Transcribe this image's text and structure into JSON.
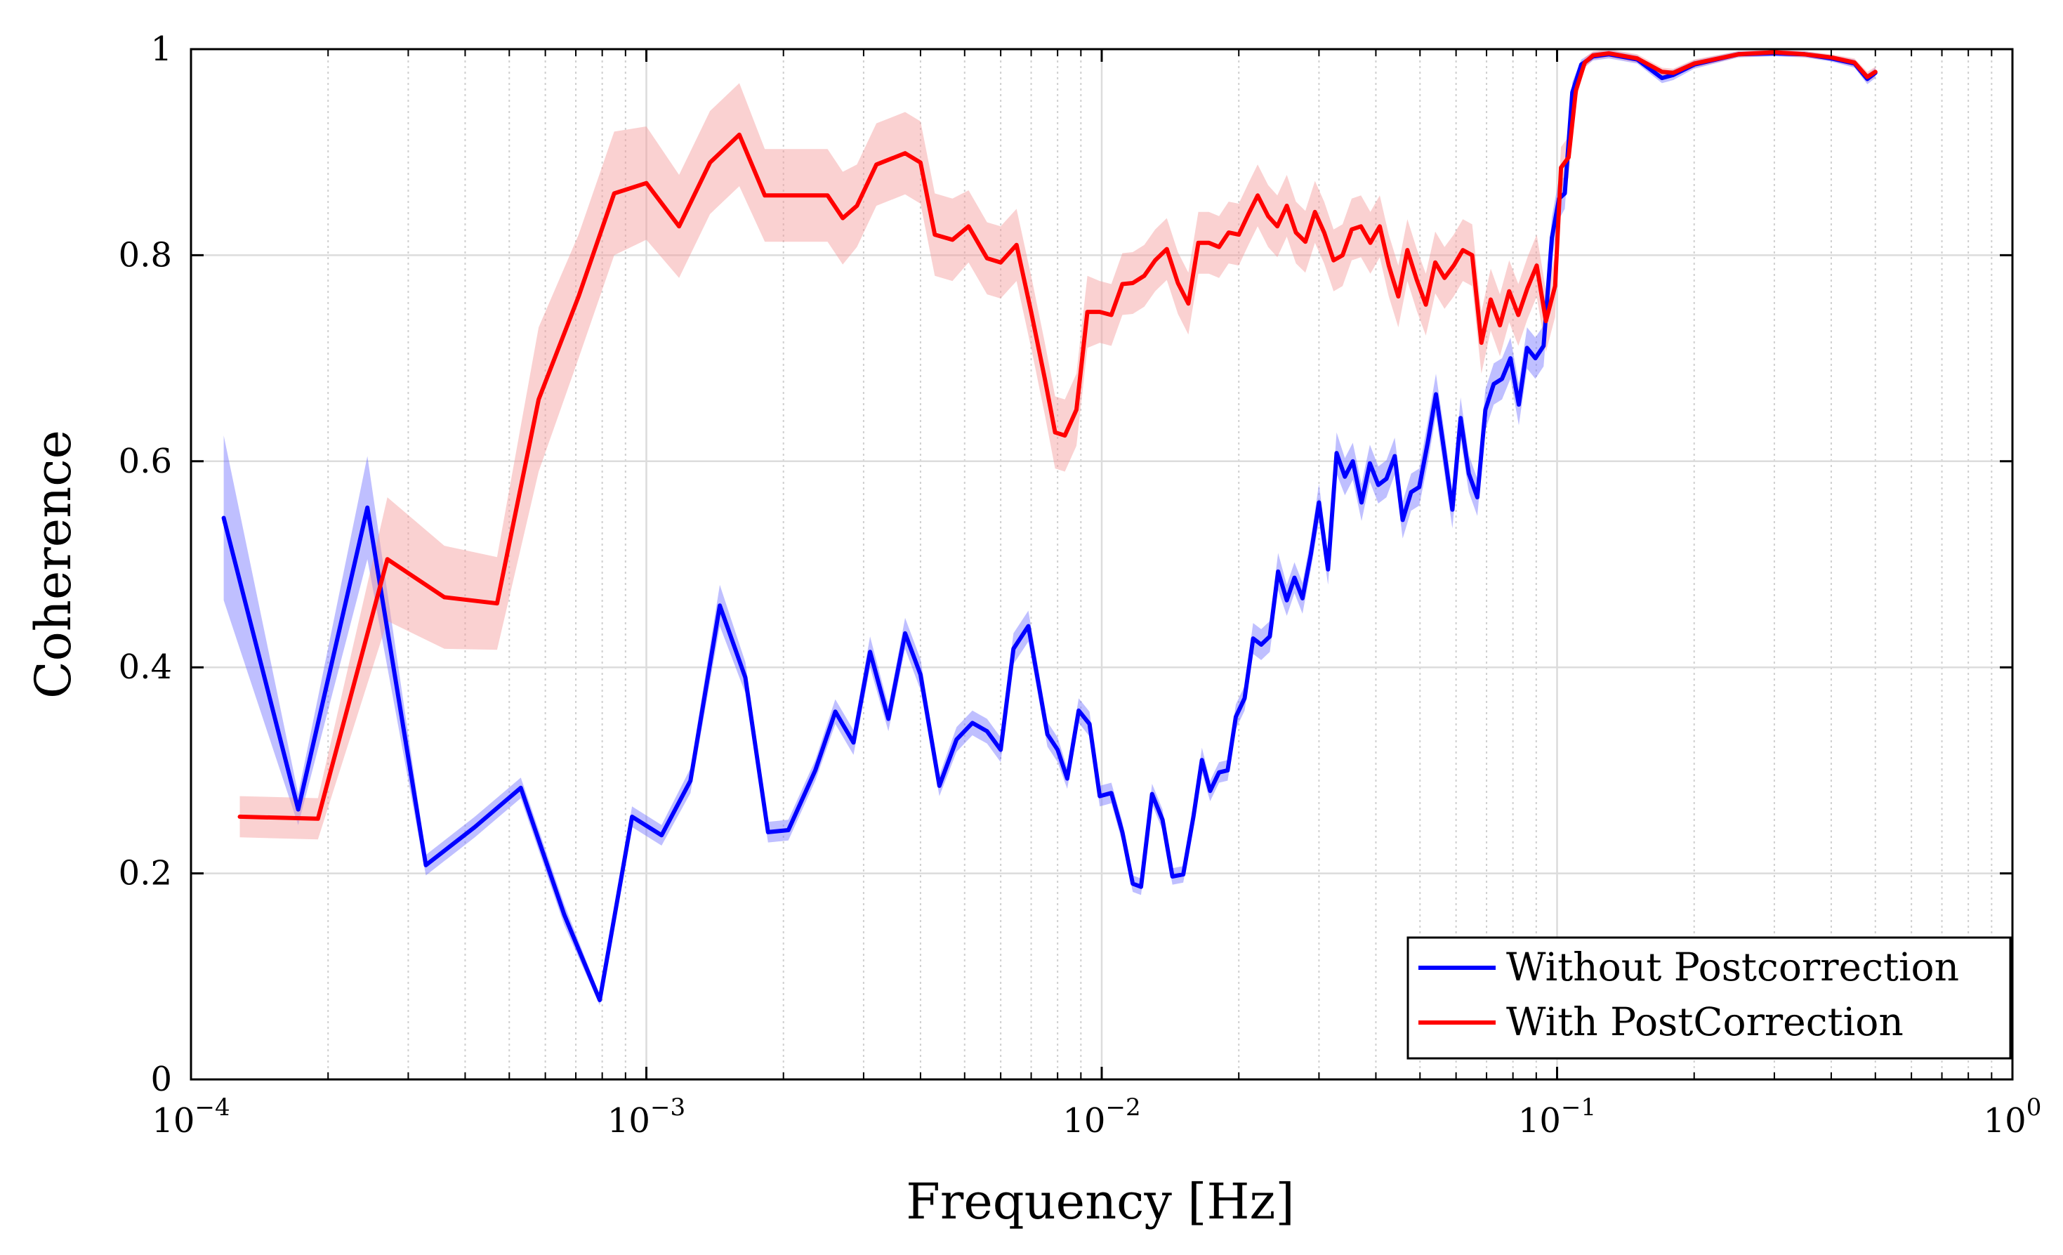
{
  "chart_data": {
    "type": "line",
    "xscale": "log",
    "xlabel": "Frequency [Hz]",
    "ylabel": "Coherence",
    "xlim": [
      0.0001,
      1
    ],
    "ylim": [
      0,
      1
    ],
    "grid": true,
    "legend_position": "bottom-right",
    "x_ticks": [
      {
        "value": 0.0001,
        "base": "10",
        "exp": "−4"
      },
      {
        "value": 0.001,
        "base": "10",
        "exp": "−3"
      },
      {
        "value": 0.01,
        "base": "10",
        "exp": "−2"
      },
      {
        "value": 0.1,
        "base": "10",
        "exp": "−1"
      },
      {
        "value": 1,
        "base": "10",
        "exp": "0"
      }
    ],
    "y_ticks": [
      {
        "value": 0,
        "label": "0"
      },
      {
        "value": 0.2,
        "label": "0.2"
      },
      {
        "value": 0.4,
        "label": "0.4"
      },
      {
        "value": 0.6,
        "label": "0.6"
      },
      {
        "value": 0.8,
        "label": "0.8"
      },
      {
        "value": 1,
        "label": "1"
      }
    ],
    "series": [
      {
        "name": "Without Postcorrection",
        "color": "#0000ff",
        "band_color": "#7070ff",
        "points": [
          [
            0.000118,
            0.545,
            0.08
          ],
          [
            0.000172,
            0.262,
            0.015
          ],
          [
            0.000244,
            0.555,
            0.05
          ],
          [
            0.000328,
            0.208,
            0.01
          ],
          [
            0.00042,
            0.245,
            0.01
          ],
          [
            0.00053,
            0.283,
            0.01
          ],
          [
            0.00066,
            0.16,
            0.01
          ],
          [
            0.00079,
            0.077,
            0.005
          ],
          [
            0.00093,
            0.255,
            0.01
          ],
          [
            0.00108,
            0.237,
            0.01
          ],
          [
            0.00125,
            0.29,
            0.012
          ],
          [
            0.00145,
            0.46,
            0.02
          ],
          [
            0.00165,
            0.39,
            0.015
          ],
          [
            0.00185,
            0.24,
            0.01
          ],
          [
            0.00205,
            0.242,
            0.01
          ],
          [
            0.00235,
            0.3,
            0.01
          ],
          [
            0.0026,
            0.357,
            0.012
          ],
          [
            0.00285,
            0.327,
            0.012
          ],
          [
            0.0031,
            0.415,
            0.015
          ],
          [
            0.0034,
            0.35,
            0.012
          ],
          [
            0.0037,
            0.433,
            0.015
          ],
          [
            0.004,
            0.393,
            0.015
          ],
          [
            0.0044,
            0.285,
            0.01
          ],
          [
            0.0048,
            0.33,
            0.012
          ],
          [
            0.0052,
            0.346,
            0.012
          ],
          [
            0.0056,
            0.338,
            0.012
          ],
          [
            0.006,
            0.32,
            0.012
          ],
          [
            0.0064,
            0.418,
            0.015
          ],
          [
            0.0069,
            0.44,
            0.015
          ],
          [
            0.0076,
            0.335,
            0.012
          ],
          [
            0.008,
            0.32,
            0.012
          ],
          [
            0.0084,
            0.292,
            0.01
          ],
          [
            0.0089,
            0.358,
            0.012
          ],
          [
            0.0094,
            0.345,
            0.012
          ],
          [
            0.0099,
            0.275,
            0.01
          ],
          [
            0.0105,
            0.278,
            0.01
          ],
          [
            0.0111,
            0.24,
            0.01
          ],
          [
            0.0117,
            0.19,
            0.008
          ],
          [
            0.0122,
            0.187,
            0.008
          ],
          [
            0.0129,
            0.277,
            0.01
          ],
          [
            0.0136,
            0.252,
            0.01
          ],
          [
            0.0143,
            0.197,
            0.008
          ],
          [
            0.0151,
            0.199,
            0.008
          ],
          [
            0.0159,
            0.255,
            0.01
          ],
          [
            0.0166,
            0.31,
            0.012
          ],
          [
            0.0173,
            0.28,
            0.01
          ],
          [
            0.0181,
            0.298,
            0.01
          ],
          [
            0.0189,
            0.3,
            0.01
          ],
          [
            0.0197,
            0.352,
            0.012
          ],
          [
            0.0206,
            0.37,
            0.012
          ],
          [
            0.0215,
            0.428,
            0.015
          ],
          [
            0.0224,
            0.422,
            0.015
          ],
          [
            0.0234,
            0.43,
            0.015
          ],
          [
            0.0244,
            0.493,
            0.018
          ],
          [
            0.0255,
            0.465,
            0.015
          ],
          [
            0.0265,
            0.487,
            0.015
          ],
          [
            0.0276,
            0.467,
            0.015
          ],
          [
            0.0288,
            0.51,
            0.015
          ],
          [
            0.03,
            0.56,
            0.018
          ],
          [
            0.0314,
            0.495,
            0.015
          ],
          [
            0.0328,
            0.608,
            0.02
          ],
          [
            0.0342,
            0.585,
            0.018
          ],
          [
            0.0356,
            0.6,
            0.018
          ],
          [
            0.0372,
            0.56,
            0.018
          ],
          [
            0.0388,
            0.598,
            0.018
          ],
          [
            0.0405,
            0.577,
            0.018
          ],
          [
            0.0422,
            0.583,
            0.018
          ],
          [
            0.044,
            0.605,
            0.018
          ],
          [
            0.0458,
            0.543,
            0.018
          ],
          [
            0.0478,
            0.57,
            0.018
          ],
          [
            0.0498,
            0.575,
            0.018
          ],
          [
            0.052,
            0.618,
            0.02
          ],
          [
            0.0542,
            0.665,
            0.02
          ],
          [
            0.0565,
            0.61,
            0.02
          ],
          [
            0.0589,
            0.553,
            0.018
          ],
          [
            0.0614,
            0.642,
            0.02
          ],
          [
            0.064,
            0.588,
            0.018
          ],
          [
            0.0668,
            0.565,
            0.018
          ],
          [
            0.0696,
            0.65,
            0.02
          ],
          [
            0.0726,
            0.675,
            0.02
          ],
          [
            0.0757,
            0.68,
            0.02
          ],
          [
            0.079,
            0.7,
            0.02
          ],
          [
            0.0824,
            0.655,
            0.02
          ],
          [
            0.0859,
            0.71,
            0.02
          ],
          [
            0.0896,
            0.7,
            0.02
          ],
          [
            0.0934,
            0.712,
            0.02
          ],
          [
            0.0974,
            0.817,
            0.02
          ],
          [
            0.101,
            0.855,
            0.02
          ],
          [
            0.104,
            0.86,
            0.015
          ],
          [
            0.108,
            0.958,
            0.01
          ],
          [
            0.113,
            0.985,
            0.005
          ],
          [
            0.12,
            0.993,
            0.004
          ],
          [
            0.13,
            0.995,
            0.004
          ],
          [
            0.15,
            0.99,
            0.004
          ],
          [
            0.17,
            0.972,
            0.005
          ],
          [
            0.18,
            0.975,
            0.005
          ],
          [
            0.2,
            0.985,
            0.004
          ],
          [
            0.25,
            0.995,
            0.003
          ],
          [
            0.3,
            0.996,
            0.003
          ],
          [
            0.35,
            0.995,
            0.003
          ],
          [
            0.4,
            0.991,
            0.003
          ],
          [
            0.45,
            0.986,
            0.004
          ],
          [
            0.48,
            0.971,
            0.005
          ],
          [
            0.5,
            0.977,
            0.005
          ]
        ]
      },
      {
        "name": "With PostCorrection",
        "color": "#ff0000",
        "band_color": "#f59a9a",
        "points": [
          [
            0.000128,
            0.255,
            0.02
          ],
          [
            0.00019,
            0.253,
            0.02
          ],
          [
            0.00027,
            0.505,
            0.06
          ],
          [
            0.00036,
            0.468,
            0.05
          ],
          [
            0.00047,
            0.462,
            0.045
          ],
          [
            0.00058,
            0.66,
            0.07
          ],
          [
            0.00071,
            0.76,
            0.06
          ],
          [
            0.00085,
            0.86,
            0.06
          ],
          [
            0.001,
            0.87,
            0.055
          ],
          [
            0.00118,
            0.828,
            0.05
          ],
          [
            0.00138,
            0.89,
            0.05
          ],
          [
            0.0016,
            0.917,
            0.05
          ],
          [
            0.00182,
            0.858,
            0.045
          ],
          [
            0.0021,
            0.858,
            0.045
          ],
          [
            0.0025,
            0.858,
            0.045
          ],
          [
            0.0027,
            0.836,
            0.045
          ],
          [
            0.0029,
            0.848,
            0.04
          ],
          [
            0.0032,
            0.888,
            0.04
          ],
          [
            0.0037,
            0.899,
            0.04
          ],
          [
            0.004,
            0.89,
            0.04
          ],
          [
            0.0043,
            0.82,
            0.04
          ],
          [
            0.0047,
            0.815,
            0.04
          ],
          [
            0.0051,
            0.828,
            0.035
          ],
          [
            0.0056,
            0.797,
            0.035
          ],
          [
            0.006,
            0.793,
            0.035
          ],
          [
            0.0065,
            0.81,
            0.035
          ],
          [
            0.007,
            0.745,
            0.035
          ],
          [
            0.0075,
            0.68,
            0.035
          ],
          [
            0.0079,
            0.628,
            0.035
          ],
          [
            0.0083,
            0.625,
            0.035
          ],
          [
            0.0088,
            0.65,
            0.035
          ],
          [
            0.0093,
            0.745,
            0.035
          ],
          [
            0.0099,
            0.745,
            0.03
          ],
          [
            0.0105,
            0.742,
            0.03
          ],
          [
            0.0111,
            0.772,
            0.03
          ],
          [
            0.0117,
            0.773,
            0.03
          ],
          [
            0.0124,
            0.78,
            0.03
          ],
          [
            0.0131,
            0.795,
            0.03
          ],
          [
            0.0139,
            0.806,
            0.03
          ],
          [
            0.0147,
            0.773,
            0.03
          ],
          [
            0.0155,
            0.753,
            0.03
          ],
          [
            0.0163,
            0.812,
            0.03
          ],
          [
            0.0172,
            0.812,
            0.03
          ],
          [
            0.0181,
            0.808,
            0.03
          ],
          [
            0.019,
            0.822,
            0.03
          ],
          [
            0.02,
            0.82,
            0.03
          ],
          [
            0.021,
            0.84,
            0.03
          ],
          [
            0.022,
            0.858,
            0.03
          ],
          [
            0.0232,
            0.838,
            0.03
          ],
          [
            0.0243,
            0.828,
            0.03
          ],
          [
            0.0255,
            0.848,
            0.03
          ],
          [
            0.0267,
            0.822,
            0.03
          ],
          [
            0.028,
            0.813,
            0.03
          ],
          [
            0.0294,
            0.842,
            0.03
          ],
          [
            0.0308,
            0.822,
            0.03
          ],
          [
            0.0323,
            0.795,
            0.03
          ],
          [
            0.0338,
            0.8,
            0.03
          ],
          [
            0.0354,
            0.825,
            0.03
          ],
          [
            0.0371,
            0.828,
            0.03
          ],
          [
            0.0389,
            0.812,
            0.03
          ],
          [
            0.0408,
            0.828,
            0.03
          ],
          [
            0.0427,
            0.79,
            0.03
          ],
          [
            0.0448,
            0.76,
            0.03
          ],
          [
            0.0469,
            0.805,
            0.03
          ],
          [
            0.0492,
            0.776,
            0.03
          ],
          [
            0.0515,
            0.752,
            0.03
          ],
          [
            0.054,
            0.793,
            0.03
          ],
          [
            0.0566,
            0.778,
            0.03
          ],
          [
            0.0593,
            0.79,
            0.03
          ],
          [
            0.0621,
            0.805,
            0.03
          ],
          [
            0.0651,
            0.8,
            0.03
          ],
          [
            0.0682,
            0.715,
            0.03
          ],
          [
            0.0715,
            0.757,
            0.03
          ],
          [
            0.0749,
            0.732,
            0.03
          ],
          [
            0.0785,
            0.765,
            0.03
          ],
          [
            0.0822,
            0.742,
            0.03
          ],
          [
            0.0861,
            0.768,
            0.03
          ],
          [
            0.0902,
            0.79,
            0.03
          ],
          [
            0.0945,
            0.736,
            0.03
          ],
          [
            0.099,
            0.77,
            0.03
          ],
          [
            0.102,
            0.885,
            0.02
          ],
          [
            0.106,
            0.895,
            0.02
          ],
          [
            0.11,
            0.96,
            0.01
          ],
          [
            0.115,
            0.987,
            0.005
          ],
          [
            0.12,
            0.994,
            0.004
          ],
          [
            0.13,
            0.996,
            0.004
          ],
          [
            0.15,
            0.991,
            0.004
          ],
          [
            0.17,
            0.978,
            0.004
          ],
          [
            0.18,
            0.977,
            0.004
          ],
          [
            0.2,
            0.986,
            0.004
          ],
          [
            0.25,
            0.995,
            0.003
          ],
          [
            0.3,
            0.997,
            0.003
          ],
          [
            0.35,
            0.995,
            0.003
          ],
          [
            0.4,
            0.992,
            0.003
          ],
          [
            0.45,
            0.987,
            0.004
          ],
          [
            0.48,
            0.973,
            0.005
          ],
          [
            0.5,
            0.978,
            0.005
          ]
        ]
      }
    ]
  }
}
